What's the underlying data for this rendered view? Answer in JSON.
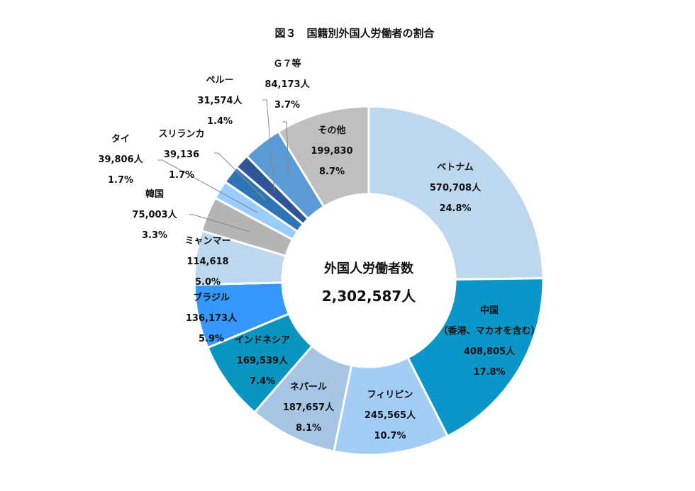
{
  "chart_data": {
    "type": "pie",
    "variant": "donut",
    "title": "図３　国籍別外国人労働者の割合",
    "center_label": "外国人労働者数",
    "center_value": "2,302,587人",
    "total": 2302587,
    "legend": "none",
    "slices": [
      {
        "name": "ベトナム",
        "value": 570708,
        "value_label": "570,708人",
        "percent_label": "24.8%",
        "color": "#BDD7EE"
      },
      {
        "name": "中国",
        "sub": "（香港、マカオを含む）",
        "value": 408805,
        "value_label": "408,805人",
        "percent_label": "17.8%",
        "color": "#0A96C8"
      },
      {
        "name": "フィリピン",
        "value": 245565,
        "value_label": "245,565人",
        "percent_label": "10.7%",
        "color": "#A3CDF5"
      },
      {
        "name": "ネパール",
        "value": 187657,
        "value_label": "187,657人",
        "percent_label": "8.1%",
        "color": "#A6C5E4"
      },
      {
        "name": "インドネシア",
        "value": 169539,
        "value_label": "169,539人",
        "percent_label": "7.4%",
        "color": "#0A94C0"
      },
      {
        "name": "ブラジル",
        "value": 136173,
        "value_label": "136,173人",
        "percent_label": "5.9%",
        "color": "#3399FF"
      },
      {
        "name": "ミャンマー",
        "value": 114618,
        "value_label": "114,618",
        "percent_label": "5.0%",
        "color": "#BDD7EE"
      },
      {
        "name": "韓国",
        "value": 75003,
        "value_label": "75,003人",
        "percent_label": "3.3%",
        "color": "#B4B4B4"
      },
      {
        "name": "タイ",
        "value": 39806,
        "value_label": "39,806人",
        "percent_label": "1.7%",
        "color": "#99CCFF"
      },
      {
        "name": "スリランカ",
        "value": 39136,
        "value_label": "39,136",
        "percent_label": "1.7%",
        "color": "#2E75B6"
      },
      {
        "name": "ペルー",
        "value": 31574,
        "value_label": "31,574人",
        "percent_label": "1.4%",
        "color": "#2F5597"
      },
      {
        "name": "Ｇ７等",
        "value": 84173,
        "value_label": "84,173人",
        "percent_label": "3.7%",
        "color": "#5B9BD5"
      },
      {
        "name": "その他",
        "value": 199830,
        "value_label": "199,830",
        "percent_label": "8.7%",
        "color": "#BFBFBF"
      }
    ]
  }
}
